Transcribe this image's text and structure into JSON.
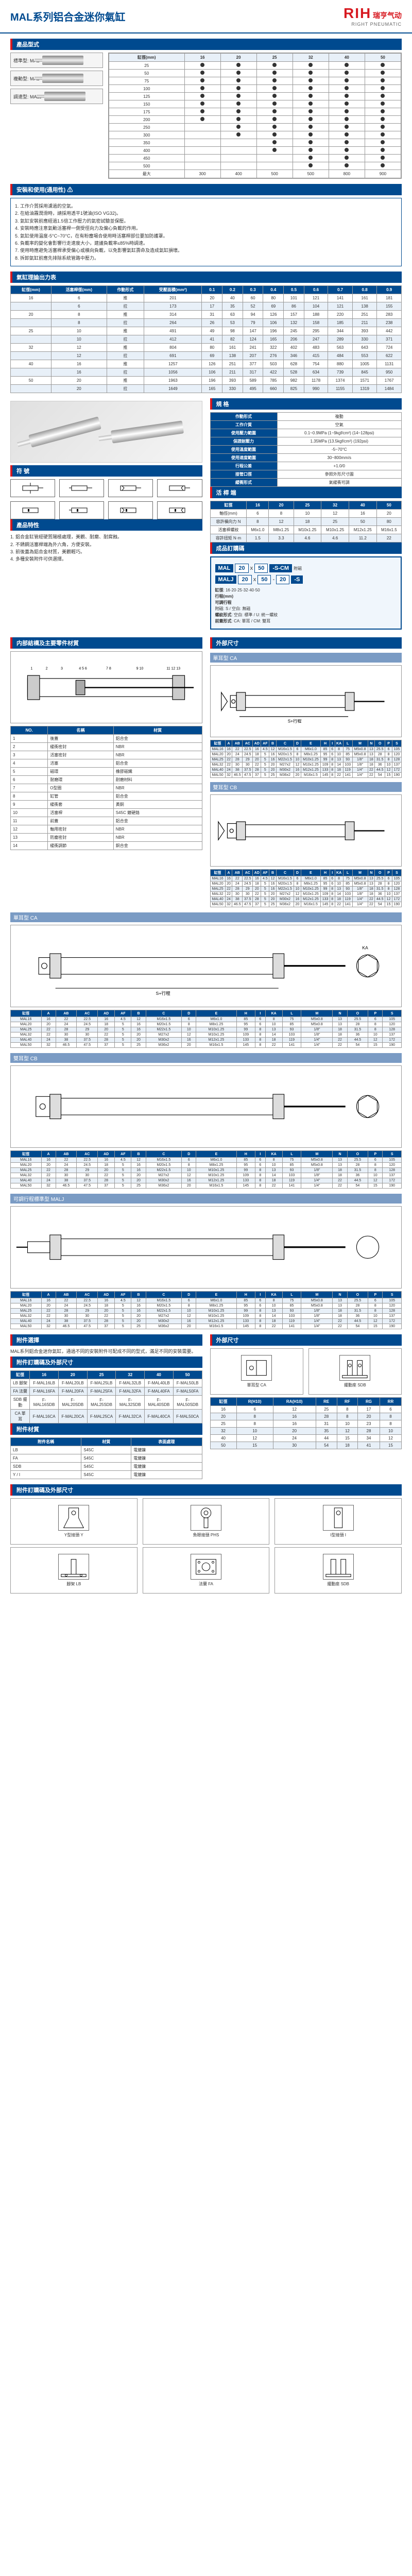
{
  "header": {
    "title_cn": "MAL系列铝合金迷你氣缸",
    "logo_text": "RIH",
    "logo_cn": "瑞亨气动",
    "logo_en": "RIGHT PNEUMATIC"
  },
  "product_form": {
    "title": "產品型式",
    "types": [
      {
        "model": "標準型: MAL",
        "desc": ""
      },
      {
        "model": "複動型: MAL",
        "desc": ""
      },
      {
        "model": "調速型: MALJ",
        "desc": ""
      }
    ],
    "stroke_head": [
      "缸徑(mm)",
      "16",
      "20",
      "25",
      "32",
      "40",
      "50"
    ],
    "stroke_sub": [
      "行程(mm)",
      "標準行程(mm)",
      "最大行程(mm)"
    ],
    "strokes": [
      "25",
      "50",
      "75",
      "100",
      "125",
      "150",
      "175",
      "200",
      "250",
      "300",
      "350",
      "400",
      "450",
      "500"
    ],
    "max_row": [
      "最大",
      "300",
      "400",
      "500",
      "500",
      "800",
      "900"
    ]
  },
  "warning": {
    "title": "安裝和使用(通用性) ⚠",
    "items": [
      "1. 工作介質採用濾過的空氣。",
      "2. 在給油霧潤滑時，請採用透平1號油(ISO VG32)。",
      "3. 氣缸安裝前應經過1.5倍工作壓力的氣密試驗並保壓。",
      "4. 安裝時應注意氣動活塞桿一側受徑向力及偏心負載的作用。",
      "5. 氣缸使用溫度-5°C~70°C，在有粉塵場合使用時活塞桿部位要加防護罩。",
      "6. 負載率的變化會影響行走速度大小，建議負載率≤85%時調速。",
      "7. 使用時應避免活塞桿承受偏心或橫向負載，以免影響氣缸壽命及造成氣缸損壞。",
      "8. 拆卸氣缸前應先排除系統管路中壓力。"
    ]
  },
  "output_table": {
    "title": "氣缸理論出力表",
    "head": [
      "缸徑(mm)",
      "活塞桿徑(mm)",
      "作動形式",
      "受壓面積(mm²)",
      "0.1",
      "0.2",
      "0.3",
      "0.4",
      "0.5",
      "0.6",
      "0.7",
      "0.8",
      "0.9"
    ],
    "rows": [
      [
        "16",
        "6",
        "推",
        "201",
        "20",
        "40",
        "60",
        "80",
        "101",
        "121",
        "141",
        "161",
        "181"
      ],
      [
        "",
        "6",
        "拉",
        "173",
        "17",
        "35",
        "52",
        "69",
        "86",
        "104",
        "121",
        "138",
        "155"
      ],
      [
        "20",
        "8",
        "推",
        "314",
        "31",
        "63",
        "94",
        "126",
        "157",
        "188",
        "220",
        "251",
        "283"
      ],
      [
        "",
        "8",
        "拉",
        "264",
        "26",
        "53",
        "79",
        "106",
        "132",
        "158",
        "185",
        "211",
        "238"
      ],
      [
        "25",
        "10",
        "推",
        "491",
        "49",
        "98",
        "147",
        "196",
        "245",
        "295",
        "344",
        "393",
        "442"
      ],
      [
        "",
        "10",
        "拉",
        "412",
        "41",
        "82",
        "124",
        "165",
        "206",
        "247",
        "289",
        "330",
        "371"
      ],
      [
        "32",
        "12",
        "推",
        "804",
        "80",
        "161",
        "241",
        "322",
        "402",
        "483",
        "563",
        "643",
        "724"
      ],
      [
        "",
        "12",
        "拉",
        "691",
        "69",
        "138",
        "207",
        "276",
        "346",
        "415",
        "484",
        "553",
        "622"
      ],
      [
        "40",
        "16",
        "推",
        "1257",
        "126",
        "251",
        "377",
        "503",
        "628",
        "754",
        "880",
        "1005",
        "1131"
      ],
      [
        "",
        "16",
        "拉",
        "1056",
        "106",
        "211",
        "317",
        "422",
        "528",
        "634",
        "739",
        "845",
        "950"
      ],
      [
        "50",
        "20",
        "推",
        "1963",
        "196",
        "393",
        "589",
        "785",
        "982",
        "1178",
        "1374",
        "1571",
        "1767"
      ],
      [
        "",
        "20",
        "拉",
        "1649",
        "165",
        "330",
        "495",
        "660",
        "825",
        "990",
        "1155",
        "1319",
        "1484"
      ]
    ]
  },
  "spec_table": {
    "title": "規 格",
    "rows": [
      [
        "作動形式",
        "複動"
      ],
      [
        "工作介質",
        "空氣"
      ],
      [
        "使用壓力範圍",
        "0.1~0.9MPa (1~9kgf/cm²) (14~128psi)"
      ],
      [
        "保證耐壓力",
        "1.35MPa (13.5kgf/cm²) (192psi)"
      ],
      [
        "使用溫度範圍",
        "-5~70°C"
      ],
      [
        "使用速度範圍",
        "30~800mm/s"
      ],
      [
        "行程公差",
        "+1.0/0"
      ],
      [
        "接管口徑",
        "參照外形尺寸圖"
      ],
      [
        "緩衝形式",
        "氣緩衝可調"
      ]
    ]
  },
  "torque_table": {
    "title": "活 桿 端",
    "head": [
      "缸徑",
      "16",
      "20",
      "25",
      "32",
      "40",
      "50"
    ],
    "rows": [
      [
        "軸徑(mm)",
        "6",
        "8",
        "10",
        "12",
        "16",
        "20"
      ],
      [
        "容許橫向力 N",
        "8",
        "12",
        "18",
        "25",
        "50",
        "80"
      ],
      [
        "活塞桿螺紋",
        "M6x1.0",
        "M8x1.25",
        "M10x1.25",
        "M10x1.25",
        "M12x1.25",
        "M16x1.5"
      ],
      [
        "容許扭矩 N·m",
        "1.5",
        "3.3",
        "4.6",
        "4.6",
        "11.2",
        "22"
      ]
    ]
  },
  "symbol": {
    "title": "符 號"
  },
  "features": {
    "title": "產品特性",
    "items": [
      "1. 鋁合金缸管經硬質陽極處理，美觀、耐磨、耐腐蝕。",
      "2. 不銹鋼活塞桿端為外六角，方便安裝。",
      "3. 前後蓋為鋁合金材質，美觀輕巧。",
      "4. 多種安裝附件可供選擇。"
    ]
  },
  "order": {
    "title": "成品訂購碼",
    "line1": {
      "series": "MAL",
      "bore": "20",
      "sep": "x",
      "stroke": "50",
      "suffix": "-S-CM",
      "note": "附磁"
    },
    "line2": {
      "series": "MALJ",
      "bore": "20",
      "sep": "x",
      "stroke": "50",
      "dash": "-",
      "adj": "20",
      "suffix": "-S"
    },
    "legend": {
      "bore_label": "缸徑",
      "bore_vals": "16·20·25·32·40·50",
      "stroke_label": "行程(mm)",
      "adj_label": "可調行程",
      "s_label": "附磁: S",
      "s_blank": "空白: 無磁",
      "thread_label": "螺紋形式",
      "thread_vals": "空白: 標準 / U: 統一螺紋",
      "mount_label": "前蓋形式",
      "mount_vals": "CA: 單耳 / CM: 雙耳"
    }
  },
  "parts": {
    "title": "内部結構及主要零件材質",
    "head": [
      "NO.",
      "名稱",
      "材質"
    ],
    "rows": [
      [
        "1",
        "後蓋",
        "鋁合金"
      ],
      [
        "2",
        "緩衝密封",
        "NBR"
      ],
      [
        "3",
        "活塞密封",
        "NBR"
      ],
      [
        "4",
        "活塞",
        "鋁合金"
      ],
      [
        "5",
        "磁環",
        "橡膠磁鐵"
      ],
      [
        "6",
        "耐磨環",
        "耐磨材料"
      ],
      [
        "7",
        "O型圈",
        "NBR"
      ],
      [
        "8",
        "缸管",
        "鋁合金"
      ],
      [
        "9",
        "緩衝套",
        "黃銅"
      ],
      [
        "10",
        "活塞桿",
        "S45C 鍍硬鉻"
      ],
      [
        "11",
        "前蓋",
        "鋁合金"
      ],
      [
        "12",
        "軸用密封",
        "NBR"
      ],
      [
        "13",
        "防塵密封",
        "NBR"
      ],
      [
        "14",
        "緩衝調節",
        "銅合金"
      ]
    ]
  },
  "ext_dim": {
    "title": "外部尺寸",
    "std_head": [
      "缸徑",
      "A",
      "AB",
      "AC",
      "AD",
      "AF",
      "B",
      "C",
      "D",
      "E",
      "H",
      "I",
      "KA",
      "L",
      "M",
      "N",
      "O",
      "P",
      "S"
    ],
    "std_rows": [
      [
        "MAL16",
        "16",
        "22",
        "22.5",
        "16",
        "4.5",
        "12",
        "M16x1.5",
        "6",
        "M6x1.0",
        "85",
        "6",
        "8",
        "75",
        "M5x0.8",
        "13",
        "25.5",
        "6",
        "105"
      ],
      [
        "MAL20",
        "20",
        "24",
        "24.5",
        "18",
        "5",
        "16",
        "M20x1.5",
        "8",
        "M8x1.25",
        "95",
        "6",
        "10",
        "85",
        "M5x0.8",
        "13",
        "28",
        "8",
        "120"
      ],
      [
        "MAL25",
        "22",
        "28",
        "29",
        "20",
        "5",
        "16",
        "M22x1.5",
        "10",
        "M10x1.25",
        "99",
        "8",
        "13",
        "93",
        "1/8\"",
        "18",
        "31.5",
        "8",
        "128"
      ],
      [
        "MAL32",
        "22",
        "30",
        "30",
        "22",
        "5",
        "20",
        "M27x2",
        "12",
        "M10x1.25",
        "109",
        "8",
        "14",
        "103",
        "1/8\"",
        "18",
        "36",
        "10",
        "137"
      ],
      [
        "MAL40",
        "24",
        "38",
        "37.5",
        "28",
        "5",
        "20",
        "M30x2",
        "16",
        "M12x1.25",
        "133",
        "8",
        "18",
        "119",
        "1/4\"",
        "22",
        "44.5",
        "12",
        "172"
      ],
      [
        "MAL50",
        "32",
        "46.5",
        "47.5",
        "37",
        "5",
        "25",
        "M36x2",
        "20",
        "M16x1.5",
        "145",
        "8",
        "22",
        "141",
        "1/4\"",
        "22",
        "54",
        "15",
        "190"
      ]
    ]
  },
  "accessory": {
    "title": "附件選擇",
    "text": "MAL系列鋁合金迷你氣缸，通過不同的安裝附件可配成不同的型式，滿足不同的安裝需要。",
    "head": [
      "缸徑",
      "16",
      "20",
      "25",
      "32",
      "40",
      "50"
    ],
    "rows": [
      [
        "LB 腳架",
        "F-MAL16LB",
        "F-MAL20LB",
        "F-MAL25LB",
        "F-MAL32LB",
        "F-MAL40LB",
        "F-MAL50LB"
      ],
      [
        "FA 法蘭",
        "F-MAL16FA",
        "F-MAL20FA",
        "F-MAL25FA",
        "F-MAL32FA",
        "F-MAL40FA",
        "F-MAL50FA"
      ],
      [
        "SDB 擺動",
        "F-MAL16SDB",
        "F-MAL20SDB",
        "F-MAL25SDB",
        "F-MAL32SDB",
        "F-MAL40SDB",
        "F-MAL50SDB"
      ],
      [
        "CA 單耳",
        "F-MAL16CA",
        "F-MAL20CA",
        "F-MAL25CA",
        "F-MAL32CA",
        "F-MAL40CA",
        "F-MAL50CA"
      ]
    ]
  },
  "acc_material": {
    "title": "附件材質",
    "head": [
      "附件名稱",
      "材質",
      "表面處理"
    ],
    "rows": [
      [
        "LB",
        "S45C",
        "電鍍鎳"
      ],
      [
        "FA",
        "S45C",
        "電鍍鎳"
      ],
      [
        "SDB",
        "S45C",
        "電鍍鎳"
      ],
      [
        "Y / I",
        "S45C",
        "電鍍鎳"
      ]
    ]
  },
  "acc_order": {
    "title": "附件訂購碼及外部尺寸",
    "items": [
      "Y型接頭 Y",
      "魚眼接頭 PHS",
      "I型接頭 I",
      "腳架 LB",
      "法蘭 FA",
      "擺動座 SDB"
    ]
  },
  "ext_single": {
    "title": "單耳型 CA"
  },
  "ext_double": {
    "title": "雙耳型 CB"
  },
  "maljd": {
    "title": "可調行程標準型 MALJ"
  },
  "ext_acc": {
    "title": "外部尺寸",
    "ca": "單耳型 CA",
    "sdb": "擺動座 SDB"
  },
  "ext_acc_dim": {
    "head": [
      "缸徑",
      "R(H10)",
      "RA(H10)",
      "RE",
      "RF",
      "RG",
      "RR"
    ],
    "rows": [
      [
        "16",
        "6",
        "12",
        "25",
        "8",
        "17",
        "6"
      ],
      [
        "20",
        "8",
        "16",
        "28",
        "8",
        "20",
        "8"
      ],
      [
        "25",
        "8",
        "16",
        "31",
        "10",
        "23",
        "8"
      ],
      [
        "32",
        "10",
        "20",
        "35",
        "12",
        "28",
        "10"
      ],
      [
        "40",
        "12",
        "24",
        "44",
        "15",
        "34",
        "12"
      ],
      [
        "50",
        "15",
        "30",
        "54",
        "18",
        "41",
        "15"
      ]
    ]
  }
}
